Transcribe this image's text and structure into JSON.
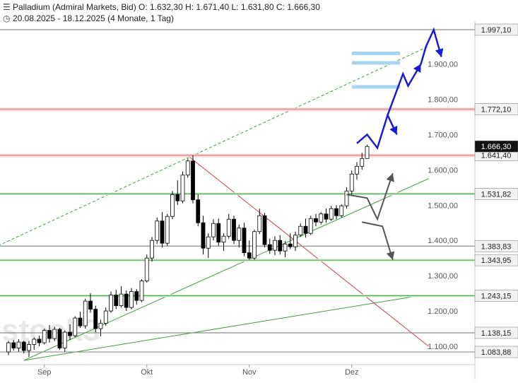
{
  "header": {
    "instrument_line": "Palladium (Admiral Markets, Bid)  O: 1.632,30  H: 1.671,40  L: 1.631,80  C: 1.666,30",
    "range_line": "20.08.2025 - 18.12.2025    (4 Monate, 1 Tag)",
    "chart_icon": "bar-chart-icon",
    "clock_icon": "clock-icon"
  },
  "watermark": "stock3",
  "chart_data": {
    "type": "candlestick",
    "title": "Palladium (Admiral Markets, Bid)",
    "ohlc_last": {
      "open": 1632.3,
      "high": 1671.4,
      "low": 1631.8,
      "close": 1666.3
    },
    "ylim": [
      1060,
      1997.1
    ],
    "yticks": [
      "1.100,00",
      "1.200,00",
      "1.300,00",
      "1.400,00",
      "1.500,00",
      "1.600,00",
      "1.700,00",
      "1.800,00",
      "1.900,00"
    ],
    "ytick_values": [
      1100,
      1200,
      1300,
      1400,
      1500,
      1600,
      1700,
      1800,
      1900
    ],
    "xticks": [
      "Sep",
      "Okt",
      "Nov",
      "Dez"
    ],
    "xtick_index": [
      7,
      27,
      47,
      67
    ],
    "candles": [
      [
        1084,
        1115,
        1075,
        1110
      ],
      [
        1110,
        1118,
        1088,
        1095
      ],
      [
        1095,
        1120,
        1085,
        1112
      ],
      [
        1112,
        1116,
        1080,
        1088
      ],
      [
        1088,
        1115,
        1070,
        1105
      ],
      [
        1105,
        1125,
        1090,
        1120
      ],
      [
        1120,
        1130,
        1100,
        1110
      ],
      [
        1110,
        1150,
        1105,
        1145
      ],
      [
        1145,
        1160,
        1110,
        1122
      ],
      [
        1122,
        1155,
        1115,
        1148
      ],
      [
        1148,
        1152,
        1090,
        1095
      ],
      [
        1095,
        1145,
        1085,
        1140
      ],
      [
        1140,
        1162,
        1118,
        1130
      ],
      [
        1130,
        1185,
        1125,
        1180
      ],
      [
        1180,
        1198,
        1152,
        1158
      ],
      [
        1158,
        1235,
        1150,
        1228
      ],
      [
        1228,
        1250,
        1195,
        1205
      ],
      [
        1205,
        1215,
        1140,
        1150
      ],
      [
        1150,
        1175,
        1128,
        1165
      ],
      [
        1165,
        1210,
        1158,
        1200
      ],
      [
        1200,
        1255,
        1195,
        1245
      ],
      [
        1245,
        1260,
        1205,
        1215
      ],
      [
        1215,
        1270,
        1210,
        1248
      ],
      [
        1248,
        1258,
        1200,
        1210
      ],
      [
        1210,
        1265,
        1205,
        1255
      ],
      [
        1255,
        1262,
        1218,
        1230
      ],
      [
        1230,
        1290,
        1225,
        1285
      ],
      [
        1285,
        1360,
        1280,
        1350
      ],
      [
        1350,
        1410,
        1340,
        1400
      ],
      [
        1400,
        1465,
        1390,
        1455
      ],
      [
        1455,
        1480,
        1380,
        1392
      ],
      [
        1392,
        1475,
        1385,
        1468
      ],
      [
        1468,
        1540,
        1460,
        1530
      ],
      [
        1530,
        1570,
        1500,
        1512
      ],
      [
        1512,
        1595,
        1505,
        1585
      ],
      [
        1585,
        1632,
        1578,
        1625
      ],
      [
        1625,
        1641,
        1505,
        1515
      ],
      [
        1515,
        1530,
        1440,
        1450
      ],
      [
        1450,
        1470,
        1360,
        1378
      ],
      [
        1378,
        1420,
        1350,
        1410
      ],
      [
        1410,
        1460,
        1400,
        1448
      ],
      [
        1448,
        1462,
        1385,
        1395
      ],
      [
        1395,
        1420,
        1370,
        1412
      ],
      [
        1412,
        1475,
        1405,
        1460
      ],
      [
        1460,
        1470,
        1390,
        1400
      ],
      [
        1400,
        1445,
        1380,
        1435
      ],
      [
        1435,
        1450,
        1355,
        1365
      ],
      [
        1365,
        1400,
        1345,
        1350
      ],
      [
        1350,
        1430,
        1345,
        1425
      ],
      [
        1425,
        1490,
        1418,
        1470
      ],
      [
        1470,
        1478,
        1380,
        1388
      ],
      [
        1388,
        1405,
        1362,
        1372
      ],
      [
        1372,
        1412,
        1358,
        1400
      ],
      [
        1400,
        1415,
        1360,
        1370
      ],
      [
        1370,
        1398,
        1352,
        1390
      ],
      [
        1390,
        1420,
        1375,
        1382
      ],
      [
        1382,
        1425,
        1370,
        1415
      ],
      [
        1415,
        1448,
        1410,
        1440
      ],
      [
        1440,
        1462,
        1408,
        1420
      ],
      [
        1420,
        1470,
        1415,
        1462
      ],
      [
        1462,
        1475,
        1440,
        1452
      ],
      [
        1452,
        1480,
        1445,
        1475
      ],
      [
        1475,
        1490,
        1450,
        1460
      ],
      [
        1460,
        1498,
        1455,
        1490
      ],
      [
        1490,
        1500,
        1460,
        1470
      ],
      [
        1470,
        1502,
        1465,
        1498
      ],
      [
        1498,
        1550,
        1490,
        1540
      ],
      [
        1540,
        1598,
        1530,
        1588
      ],
      [
        1588,
        1622,
        1572,
        1610
      ],
      [
        1610,
        1648,
        1600,
        1632
      ],
      [
        1632,
        1671.4,
        1631.8,
        1666.3
      ]
    ],
    "levels": [
      {
        "value": 1997.1,
        "label": "1.997,10",
        "kind": "gray"
      },
      {
        "value": 1772.1,
        "label": "1.772,10",
        "kind": "red"
      },
      {
        "value": 1641.4,
        "label": "1.641,40",
        "kind": "red"
      },
      {
        "value": 1531.82,
        "label": "1.531,82",
        "kind": "green"
      },
      {
        "value": 1383.83,
        "label": "1.383,83",
        "kind": "gray"
      },
      {
        "value": 1343.95,
        "label": "1.343,95",
        "kind": "green"
      },
      {
        "value": 1243.15,
        "label": "1.243,15",
        "kind": "green"
      },
      {
        "value": 1138.15,
        "label": "1.138,15",
        "kind": "gray"
      },
      {
        "value": 1083.88,
        "label": "1.083,88",
        "kind": "gray"
      }
    ],
    "last_price_label": "1.666,30",
    "last_price_value": 1666.3,
    "trendlines": [
      {
        "kind": "green-dashed",
        "from": [
          -2,
          1385
        ],
        "to": [
          82,
          1950
        ]
      },
      {
        "kind": "green",
        "from": [
          3,
          1060
        ],
        "to": [
          82,
          1575
        ]
      },
      {
        "kind": "green",
        "from": [
          3,
          1060
        ],
        "to": [
          80,
          1243
        ]
      },
      {
        "kind": "red",
        "from": [
          35,
          1640
        ],
        "to": [
          82,
          1100
        ]
      }
    ],
    "scenario_up": [
      [
        68,
        1675
      ],
      [
        70,
        1700
      ],
      [
        72,
        1662
      ],
      [
        74,
        1755
      ],
      [
        75.8,
        1700
      ]
    ],
    "scenario_up2": [
      [
        74,
        1755
      ],
      [
        77,
        1872
      ],
      [
        78,
        1838
      ],
      [
        80.5,
        1900
      ],
      [
        81.5,
        1950
      ],
      [
        83,
        1997
      ],
      [
        84.5,
        1920
      ]
    ],
    "scenario_down": [
      [
        66,
        1530
      ],
      [
        70,
        1520
      ],
      [
        72,
        1460
      ],
      [
        75,
        1590
      ]
    ],
    "scenario_down2": [
      [
        69,
        1452
      ],
      [
        73,
        1440
      ],
      [
        75,
        1345
      ]
    ],
    "colors": {
      "candle": "#000000",
      "up": "#ffffff",
      "down": "#000000",
      "level_red": "#d98b8b",
      "level_red_fill": "#f6d6d6",
      "level_green": "#4caa4c",
      "level_gray": "#8c8c8c",
      "blue_arrow": "#1a1ad6",
      "gray_arrow": "#555555",
      "light_blue_box": "#a8d4f2",
      "red_trend": "#cc4444",
      "green_trend": "#3ca03c"
    }
  }
}
